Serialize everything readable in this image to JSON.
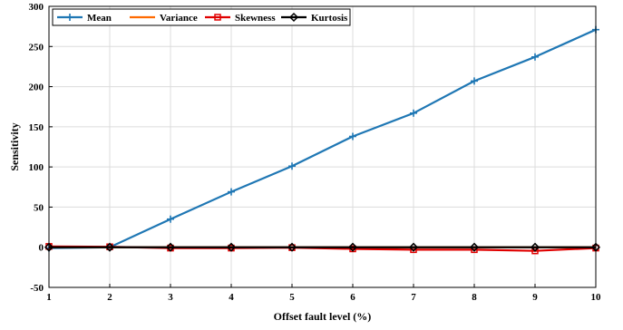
{
  "chart_data": {
    "type": "line",
    "xlabel": "Offset fault level (%)",
    "ylabel": "Sensitivity",
    "xlim": [
      1,
      10
    ],
    "ylim": [
      -50,
      300
    ],
    "x_ticks": [
      1,
      2,
      3,
      4,
      5,
      6,
      7,
      8,
      9,
      10
    ],
    "y_ticks": [
      -50,
      0,
      50,
      100,
      150,
      200,
      250,
      300
    ],
    "grid": true,
    "legend_position": "top-left",
    "x": [
      1,
      2,
      3,
      4,
      5,
      6,
      7,
      8,
      9,
      10
    ],
    "series": [
      {
        "name": "Mean",
        "color": "#1f77b4",
        "marker": "plus",
        "values": [
          -1,
          0,
          35,
          69,
          101,
          138,
          167,
          207,
          237,
          271
        ]
      },
      {
        "name": "Variance",
        "color": "#ff6a00",
        "marker": "none",
        "values": [
          0,
          0,
          0,
          0,
          0,
          0,
          0,
          0,
          0,
          0
        ]
      },
      {
        "name": "Skewness",
        "color": "#e00000",
        "marker": "square",
        "values": [
          1,
          0.5,
          -1,
          -1,
          -0.5,
          -2,
          -3,
          -3,
          -4.5,
          -1
        ]
      },
      {
        "name": "Kurtosis",
        "color": "#000000",
        "marker": "diamond",
        "values": [
          0,
          0,
          0,
          0,
          0,
          0,
          0,
          0,
          0,
          0
        ]
      }
    ]
  }
}
